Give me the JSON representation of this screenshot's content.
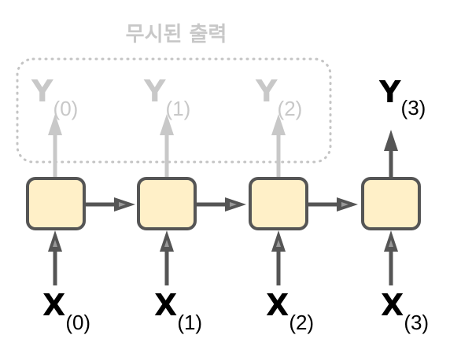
{
  "title": "무시된 출력",
  "colors": {
    "cell_fill": "#FFF0C8",
    "cell_stroke": "#555555",
    "arrow": "#555555",
    "ignored": "#C8C8C8",
    "ignored_box": "#C4C4C4",
    "text": "#000000"
  },
  "inputs": [
    {
      "main": "X",
      "sub": "(0)"
    },
    {
      "main": "X",
      "sub": "(1)"
    },
    {
      "main": "X",
      "sub": "(2)"
    },
    {
      "main": "X",
      "sub": "(3)"
    }
  ],
  "outputs": [
    {
      "main": "Y",
      "sub": "(0)",
      "ignored": true
    },
    {
      "main": "Y",
      "sub": "(1)",
      "ignored": true
    },
    {
      "main": "Y",
      "sub": "(2)",
      "ignored": true
    },
    {
      "main": "Y",
      "sub": "(3)",
      "ignored": false
    }
  ]
}
